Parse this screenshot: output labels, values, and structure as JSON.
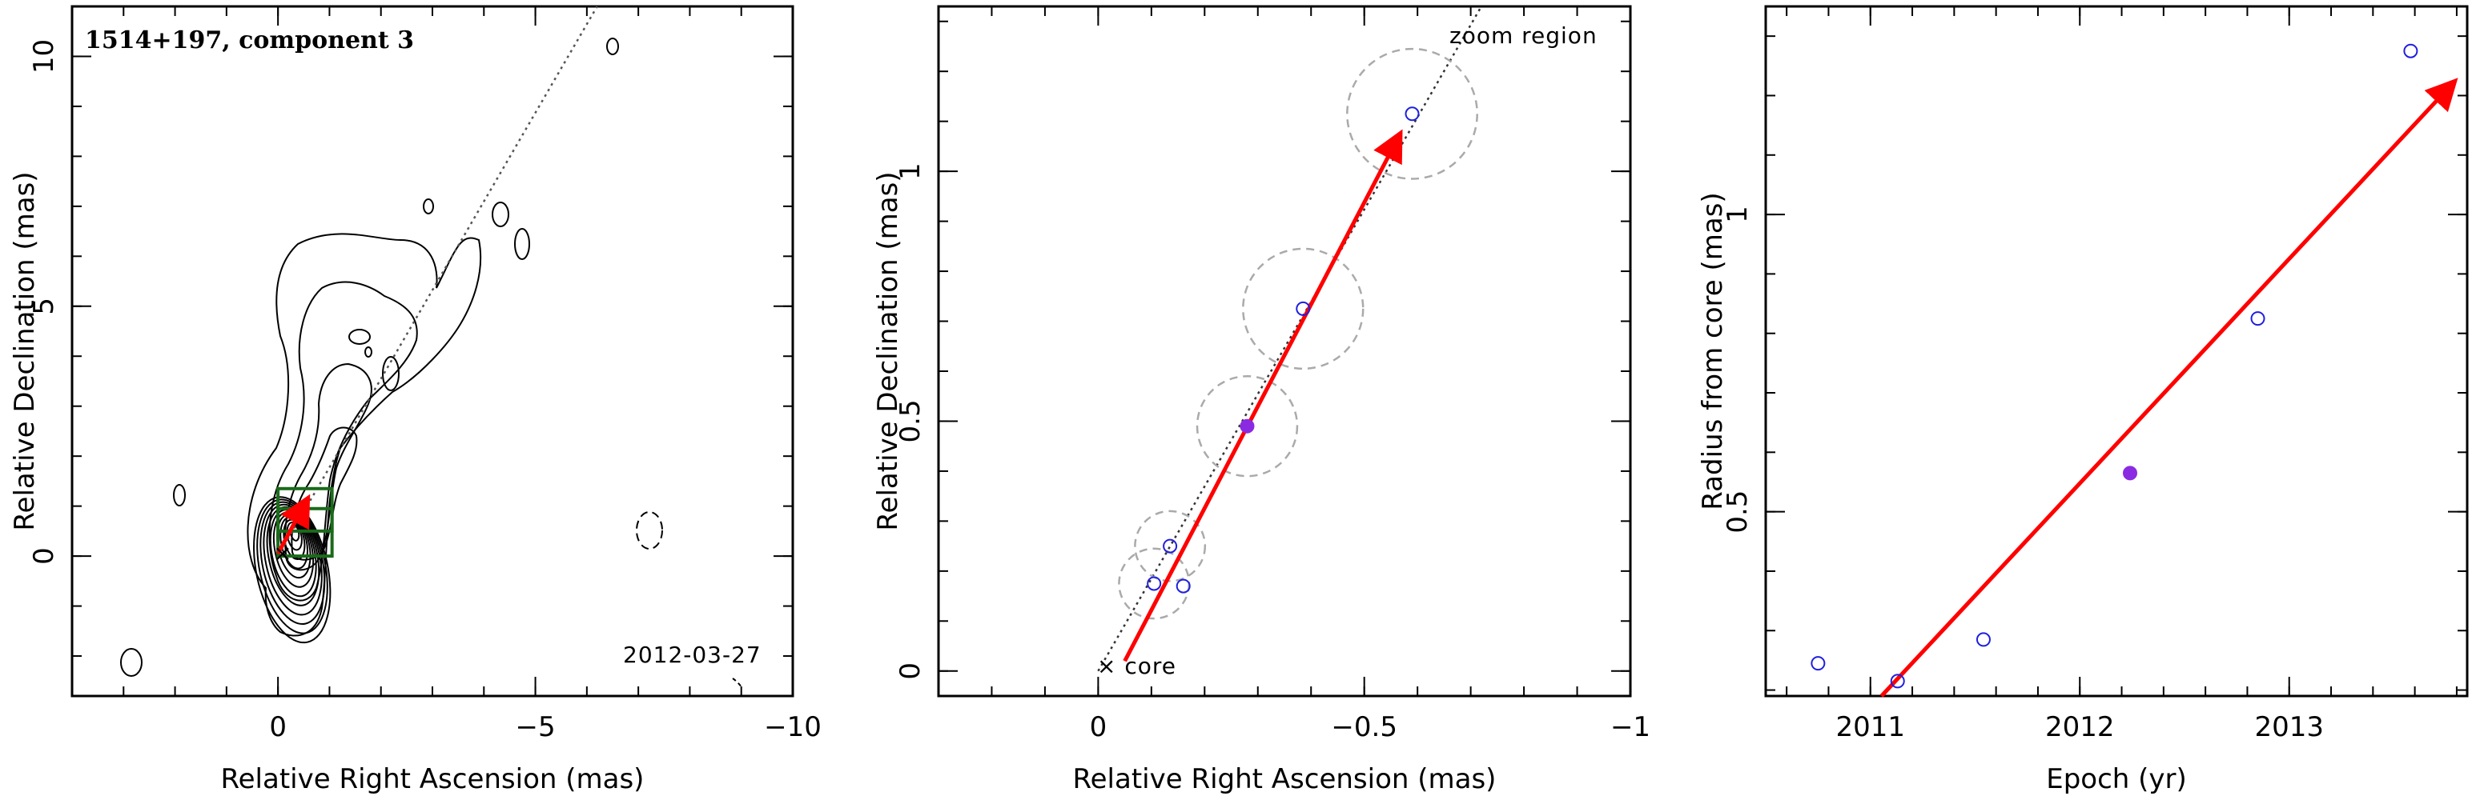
{
  "chart_data": [
    {
      "type": "contour",
      "title": "1514+197, component 3",
      "xlabel": "Relative Right Ascension (mas)",
      "ylabel": "Relative Declination (mas)",
      "xlim": [
        4,
        -10
      ],
      "ylim": [
        -2.8,
        11
      ],
      "xticks": [
        0,
        -5,
        -10
      ],
      "yticks": [
        0,
        5,
        10
      ],
      "date_label": "2012-03-27",
      "jet_axis": {
        "x": [
          0,
          -6.2
        ],
        "y": [
          0,
          11
        ]
      },
      "component_zoom_boxes": [
        {
          "x": [
            0,
            -1.05
          ],
          "y": [
            0,
            1.35
          ]
        },
        {
          "x": [
            0,
            -1.05
          ],
          "y": [
            0.5,
            0.95
          ]
        }
      ],
      "velocity_arrow": {
        "x": [
          0,
          -0.55
        ],
        "y": [
          0.05,
          1.1
        ]
      },
      "core_marker": {
        "x": 0,
        "y": 0
      },
      "colors": {
        "contour": "#000000",
        "box": "#1a6b1a",
        "arrow": "#ff0000",
        "axis_line": "#555555"
      }
    },
    {
      "type": "scatter",
      "xlabel": "Relative Right Ascension (mas)",
      "ylabel": "Relative Declination (mas)",
      "xlim": [
        0.3,
        -1.0
      ],
      "ylim": [
        -0.05,
        1.33
      ],
      "xticks": [
        0,
        -0.5,
        -1
      ],
      "xtick_labels": [
        "0",
        "−0.5",
        "−1"
      ],
      "yticks": [
        0,
        0.5,
        1
      ],
      "yticklabels": [
        "0",
        "0.5",
        "1"
      ],
      "zoom_label": "zoom region",
      "core_label": "× core",
      "points": [
        {
          "x": -0.105,
          "y": 0.175,
          "filled": false,
          "circle_r": 0.07
        },
        {
          "x": -0.135,
          "y": 0.25,
          "filled": false,
          "circle_r": 0.07
        },
        {
          "x": -0.16,
          "y": 0.17,
          "filled": false,
          "circle_r": 0
        },
        {
          "x": -0.28,
          "y": 0.49,
          "filled": true,
          "circle_r": 0.1
        },
        {
          "x": -0.385,
          "y": 0.725,
          "filled": false,
          "circle_r": 0.12
        },
        {
          "x": -0.59,
          "y": 1.115,
          "filled": false,
          "circle_r": 0.13
        }
      ],
      "arrow": {
        "x": [
          -0.05,
          -0.565
        ],
        "y": [
          0.02,
          1.07
        ]
      },
      "jet_axis": {
        "x": [
          0,
          -0.72
        ],
        "y": [
          0,
          1.33
        ]
      },
      "colors": {
        "point": "#1f1fe0",
        "filled_point": "#8a2be2",
        "arrow": "#ff0000",
        "circle": "#aaaaaa"
      }
    },
    {
      "type": "scatter",
      "xlabel": "Epoch (yr)",
      "ylabel": "Radius from core (mas)",
      "xlim": [
        2010.5,
        2013.85
      ],
      "ylim": [
        0.19,
        1.35
      ],
      "xticks": [
        2011,
        2012,
        2013
      ],
      "yticks": [
        0.5,
        1
      ],
      "yticklabels": [
        "0.5",
        "1"
      ],
      "points": [
        {
          "x": 2010.75,
          "y": 0.245,
          "filled": false
        },
        {
          "x": 2011.13,
          "y": 0.215,
          "filled": false
        },
        {
          "x": 2011.54,
          "y": 0.285,
          "filled": false
        },
        {
          "x": 2012.24,
          "y": 0.565,
          "filled": true
        },
        {
          "x": 2012.85,
          "y": 0.825,
          "filled": false
        },
        {
          "x": 2013.58,
          "y": 1.275,
          "filled": false
        }
      ],
      "fit_arrow": {
        "x": [
          2011.0,
          2013.78
        ],
        "y": [
          0.17,
          1.22
        ]
      },
      "colors": {
        "point": "#1f1fe0",
        "filled_point": "#8a2be2",
        "arrow": "#ff0000"
      }
    }
  ]
}
